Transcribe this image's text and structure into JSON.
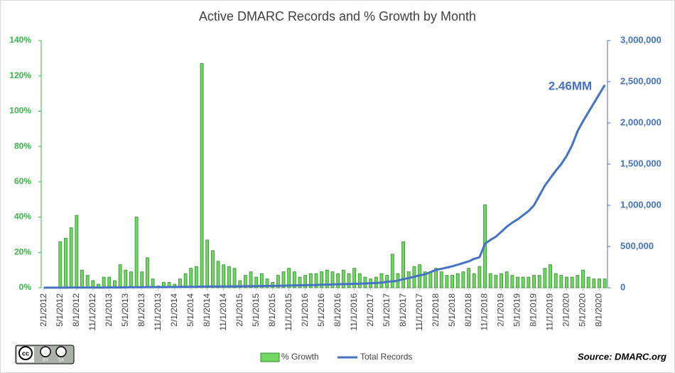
{
  "chart_data": {
    "type": "bar_line",
    "title": "Active DMARC Records and % Growth by Month",
    "annotation": "2.46MM",
    "source": "Source: DMARC.org",
    "license": {
      "by": "BY",
      "sa": "SA"
    },
    "categories": [
      "2/1/2012",
      null,
      null,
      "5/1/2012",
      null,
      null,
      "8/1/2012",
      null,
      null,
      "11/1/2012",
      null,
      null,
      "2/1/2013",
      null,
      null,
      "5/1/2013",
      null,
      null,
      "8/1/2013",
      null,
      null,
      "11/1/2013",
      null,
      null,
      "2/1/2014",
      null,
      null,
      "5/1/2014",
      null,
      null,
      "8/1/2014",
      null,
      null,
      "11/1/2014",
      null,
      null,
      "2/1/2015",
      null,
      null,
      "5/1/2015",
      null,
      null,
      "8/1/2015",
      null,
      null,
      "11/1/2015",
      null,
      null,
      "2/1/2016",
      null,
      null,
      "5/1/2016",
      null,
      null,
      "8/1/2016",
      null,
      null,
      "11/1/2016",
      null,
      null,
      "2/1/2017",
      null,
      null,
      "5/1/2017",
      null,
      null,
      "8/1/2017",
      null,
      null,
      "11/1/2017",
      null,
      null,
      "2/1/2018",
      null,
      null,
      "5/1/2018",
      null,
      null,
      "8/1/2018",
      null,
      null,
      "11/1/2018",
      null,
      null,
      "2/1/2019",
      null,
      null,
      "5/1/2019",
      null,
      null,
      "8/1/2019",
      null,
      null,
      "11/1/2019",
      null,
      null,
      "2/1/2020",
      null,
      null,
      "5/1/2020",
      null,
      null,
      "8/1/2020",
      null
    ],
    "series": [
      {
        "name": "% Growth",
        "color": "#70d860",
        "edge": "#2e8b2e",
        "kind": "bar",
        "axis": "y",
        "values": [
          null,
          null,
          null,
          26,
          28,
          34,
          41,
          10,
          7,
          4,
          2,
          6,
          6,
          4,
          13,
          10,
          9,
          40,
          9,
          17,
          5,
          1,
          3,
          3,
          2,
          5,
          8,
          11,
          12,
          127,
          27,
          21,
          15,
          13,
          12,
          11,
          4,
          7,
          9,
          6,
          8,
          5,
          3,
          7,
          9,
          11,
          9,
          6,
          7,
          8,
          8,
          9,
          10,
          9,
          8,
          10,
          8,
          11,
          8,
          6,
          5,
          6,
          8,
          7,
          19,
          8,
          26,
          9,
          12,
          13,
          9,
          9,
          11,
          9,
          7,
          7,
          8,
          9,
          11,
          8,
          12,
          47,
          8,
          7,
          8,
          9,
          7,
          6,
          6,
          6,
          7,
          7,
          11,
          13,
          8,
          7,
          6,
          6,
          7,
          10,
          6,
          5,
          5,
          5
        ]
      },
      {
        "name": "Total Records",
        "color": "#4472c4",
        "kind": "line",
        "axis": "y2",
        "values": [
          500,
          600,
          700,
          900,
          1200,
          1600,
          2300,
          2500,
          2600,
          2700,
          2800,
          3000,
          3200,
          3500,
          3800,
          4200,
          5900,
          6400,
          7300,
          7600,
          7700,
          7900,
          8100,
          8300,
          8700,
          9300,
          10000,
          11000,
          12500,
          13500,
          14200,
          14800,
          15300,
          15800,
          16200,
          16500,
          17000,
          17800,
          18500,
          19500,
          20500,
          21500,
          22500,
          23500,
          25000,
          26500,
          28000,
          29500,
          31000,
          32500,
          34000,
          36000,
          38000,
          40000,
          42000,
          44000,
          46000,
          48000,
          50000,
          52000,
          55000,
          58000,
          62000,
          72000,
          78000,
          85000,
          105000,
          118000,
          133000,
          150000,
          164000,
          190000,
          216000,
          230000,
          245000,
          260000,
          280000,
          300000,
          320000,
          350000,
          370000,
          535000,
          580000,
          620000,
          680000,
          740000,
          790000,
          830000,
          880000,
          930000,
          1000000,
          1120000,
          1240000,
          1330000,
          1420000,
          1500000,
          1600000,
          1730000,
          1900000,
          2020000,
          2130000,
          2240000,
          2350000,
          2460000
        ]
      }
    ],
    "ylim": [
      0,
      140
    ],
    "yticks": [
      {
        "value": 0,
        "label": "0%"
      },
      {
        "value": 20,
        "label": "20%"
      },
      {
        "value": 40,
        "label": "40%"
      },
      {
        "value": 60,
        "label": "60%"
      },
      {
        "value": 80,
        "label": "80%"
      },
      {
        "value": 100,
        "label": "100%"
      },
      {
        "value": 120,
        "label": "120%"
      },
      {
        "value": 140,
        "label": "140%"
      }
    ],
    "y2lim": [
      0,
      3000000
    ],
    "y2ticks": [
      0,
      {
        "value": 500000,
        "label": "500,000"
      },
      {
        "value": 1000000,
        "label": "1,000,000"
      },
      {
        "value": 1500000,
        "label": "1,500,000"
      },
      {
        "value": 2000000,
        "label": "2,000,000"
      },
      {
        "value": 2500000,
        "label": "2,500,000"
      },
      {
        "value": 3000000,
        "label": "3,000,000"
      }
    ],
    "grid": false
  }
}
